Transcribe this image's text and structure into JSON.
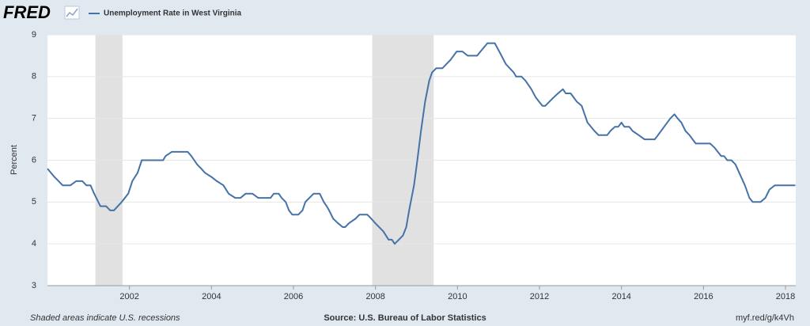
{
  "logo": "FRED",
  "chart_data": {
    "type": "line",
    "y_label": "Percent",
    "note": "Shaded areas indicate U.S. recessions",
    "source": "Source: U.S. Bureau of Labor Statistics",
    "link": "myf.red/g/k4Vh",
    "x": [
      2000.0,
      2000.17,
      2000.37,
      2000.56,
      2000.7,
      2000.85,
      2000.95,
      2001.05,
      2001.14,
      2001.29,
      2001.43,
      2001.53,
      2001.62,
      2001.81,
      2001.97,
      2002.07,
      2002.2,
      2002.3,
      2002.82,
      2002.88,
      2003.03,
      2003.42,
      2003.51,
      2003.65,
      2003.75,
      2003.84,
      2004.0,
      2004.13,
      2004.29,
      2004.42,
      2004.58,
      2004.71,
      2004.83,
      2005.0,
      2005.14,
      2005.44,
      2005.52,
      2005.64,
      2005.71,
      2005.81,
      2005.89,
      2005.97,
      2006.12,
      2006.22,
      2006.29,
      2006.49,
      2006.64,
      2006.74,
      2006.81,
      2006.87,
      2006.97,
      2007.08,
      2007.2,
      2007.26,
      2007.36,
      2007.51,
      2007.61,
      2007.8,
      2007.9,
      2007.99,
      2008.19,
      2008.32,
      2008.4,
      2008.47,
      2008.57,
      2008.67,
      2008.75,
      2008.82,
      2008.94,
      2009.02,
      2009.11,
      2009.21,
      2009.31,
      2009.38,
      2009.48,
      2009.63,
      2009.83,
      2009.98,
      2010.12,
      2010.25,
      2010.48,
      2010.56,
      2010.73,
      2010.91,
      2011.02,
      2011.18,
      2011.37,
      2011.43,
      2011.56,
      2011.66,
      2011.8,
      2011.91,
      2012.07,
      2012.14,
      2012.34,
      2012.45,
      2012.57,
      2012.64,
      2012.76,
      2012.91,
      2013.03,
      2013.17,
      2013.34,
      2013.44,
      2013.65,
      2013.73,
      2013.84,
      2013.92,
      2014.0,
      2014.07,
      2014.19,
      2014.27,
      2014.42,
      2014.56,
      2014.81,
      2014.89,
      2015.04,
      2015.19,
      2015.29,
      2015.37,
      2015.46,
      2015.56,
      2015.66,
      2015.81,
      2016.16,
      2016.27,
      2016.43,
      2016.5,
      2016.58,
      2016.68,
      2016.78,
      2016.87,
      2017.01,
      2017.12,
      2017.2,
      2017.39,
      2017.51,
      2017.61,
      2017.74,
      2018.24
    ],
    "series": [
      {
        "name": "Unemployment Rate in West Virginia",
        "color": "#4572a7",
        "values": [
          5.8,
          5.6,
          5.4,
          5.4,
          5.5,
          5.5,
          5.4,
          5.4,
          5.2,
          4.9,
          4.9,
          4.8,
          4.8,
          5.0,
          5.2,
          5.5,
          5.7,
          6.0,
          6.0,
          6.1,
          6.2,
          6.2,
          6.1,
          5.9,
          5.8,
          5.7,
          5.6,
          5.5,
          5.4,
          5.2,
          5.1,
          5.1,
          5.2,
          5.2,
          5.1,
          5.1,
          5.2,
          5.2,
          5.1,
          5.0,
          4.8,
          4.7,
          4.7,
          4.8,
          5.0,
          5.2,
          5.2,
          5.0,
          4.9,
          4.8,
          4.6,
          4.5,
          4.4,
          4.4,
          4.5,
          4.6,
          4.7,
          4.7,
          4.6,
          4.5,
          4.3,
          4.1,
          4.1,
          4.0,
          4.1,
          4.2,
          4.4,
          4.8,
          5.4,
          6.0,
          6.7,
          7.4,
          7.9,
          8.1,
          8.2,
          8.2,
          8.4,
          8.6,
          8.6,
          8.5,
          8.5,
          8.6,
          8.8,
          8.8,
          8.6,
          8.3,
          8.1,
          8.0,
          8.0,
          7.9,
          7.7,
          7.5,
          7.3,
          7.3,
          7.5,
          7.6,
          7.7,
          7.6,
          7.6,
          7.4,
          7.3,
          6.9,
          6.7,
          6.6,
          6.6,
          6.7,
          6.8,
          6.8,
          6.9,
          6.8,
          6.8,
          6.7,
          6.6,
          6.5,
          6.5,
          6.6,
          6.8,
          7.0,
          7.1,
          7.0,
          6.9,
          6.7,
          6.6,
          6.4,
          6.4,
          6.3,
          6.1,
          6.1,
          6.0,
          6.0,
          5.9,
          5.7,
          5.4,
          5.1,
          5.0,
          5.0,
          5.1,
          5.3,
          5.4,
          5.4
        ]
      }
    ],
    "recessions": [
      [
        2001.17,
        2001.83
      ],
      [
        2007.92,
        2009.42
      ]
    ],
    "xlim": [
      2000,
      2018.25
    ],
    "xticks": [
      2002,
      2004,
      2006,
      2008,
      2010,
      2012,
      2014,
      2016,
      2018
    ],
    "ylim": [
      3,
      9
    ],
    "yticks": [
      3,
      4,
      5,
      6,
      7,
      8,
      9
    ],
    "grid": true
  }
}
